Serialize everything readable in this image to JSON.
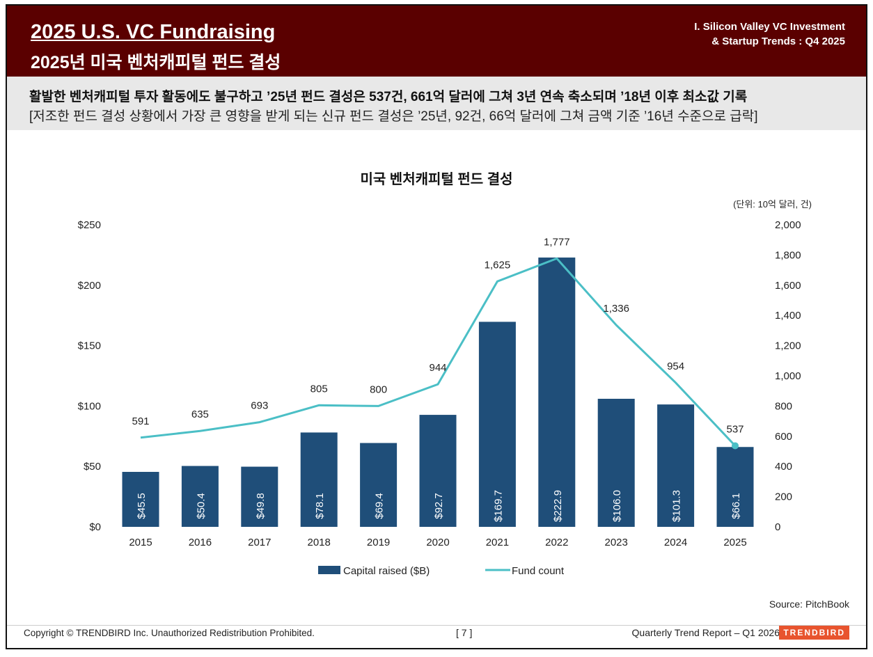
{
  "header": {
    "title_en": "2025 U.S. VC Fundraising",
    "title_ko": "2025년 미국 벤처캐피털 펀드 결성",
    "section_line1": "I. Silicon Valley VC Investment",
    "section_line2": "& Startup Trends : Q4 2025"
  },
  "headline": {
    "main": "활발한 벤처캐피털 투자 활동에도 불구하고 ’25년 펀드 결성은 537건, 661억 달러에 그쳐 3년 연속 축소되며 ’18년 이후 최소값 기록",
    "sub": "[저조한 펀드 결성 상황에서 가장 큰 영향을 받게 되는 신규 펀드 결성은 ’25년, 92건, 66억 달러에 그쳐 금액 기준 ’16년 수준으로 급락]"
  },
  "chart_data": {
    "type": "bar+line",
    "title": "미국 벤처캐피털 펀드 결성",
    "unit_note": "(단위: 10억 달러, 건)",
    "categories": [
      "2015",
      "2016",
      "2017",
      "2018",
      "2019",
      "2020",
      "2021",
      "2022",
      "2023",
      "2024",
      "2025"
    ],
    "series": [
      {
        "name": "Capital raised ($B)",
        "type": "bar",
        "axis": "left",
        "color": "#1f4e79",
        "values": [
          45.5,
          50.4,
          49.8,
          78.1,
          69.4,
          92.7,
          169.7,
          222.9,
          106.0,
          101.3,
          66.1
        ],
        "labels": [
          "$45.5",
          "$50.4",
          "$49.8",
          "$78.1",
          "$69.4",
          "$92.7",
          "$169.7",
          "$222.9",
          "$106.0",
          "$101.3",
          "$66.1"
        ]
      },
      {
        "name": "Fund count",
        "type": "line",
        "axis": "right",
        "color": "#4bbfc6",
        "values": [
          591,
          635,
          693,
          805,
          800,
          944,
          1625,
          1777,
          1336,
          954,
          537
        ],
        "labels": [
          "591",
          "635",
          "693",
          "805",
          "800",
          "944",
          "1,625",
          "1,777",
          "1,336",
          "954",
          "537"
        ]
      }
    ],
    "left_axis": {
      "range": [
        0,
        250
      ],
      "ticks": [
        "$0",
        "$50",
        "$100",
        "$150",
        "$200",
        "$250"
      ]
    },
    "right_axis": {
      "range": [
        0,
        2000
      ],
      "ticks": [
        "0",
        "200",
        "400",
        "600",
        "800",
        "1,000",
        "1,200",
        "1,400",
        "1,600",
        "1,800",
        "2,000"
      ]
    },
    "legend_placement": "bottom",
    "grid": false
  },
  "footer": {
    "source": "Source: PitchBook",
    "copyright": "Copyright © TRENDBIRD Inc. Unauthorized Redistribution Prohibited.",
    "page": "[ 7 ]",
    "report": "Quarterly Trend Report – Q1 2026",
    "logo": "TRENDBIRD"
  }
}
